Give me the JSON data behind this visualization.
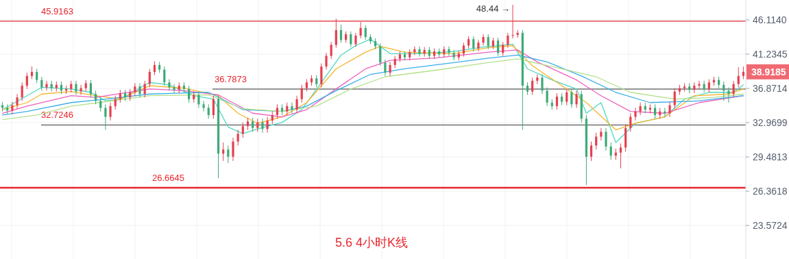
{
  "chart_data": {
    "type": "candlestick",
    "title": "5.6 4小时K线",
    "log": true,
    "grid": true,
    "tick_labels": "y",
    "ylim": [
      21.13,
      49.2
    ],
    "yticks": [
      23.5724,
      26.3618,
      29.4813,
      32.9699,
      36.8714,
      41.2345,
      {
        "value": 46.114,
        "label": "46.1140"
      }
    ],
    "categories": [
      null,
      null,
      null,
      null,
      null,
      null,
      null,
      null,
      null,
      null,
      null,
      null,
      null,
      null,
      null,
      null,
      null,
      null,
      null,
      null,
      null,
      null,
      null,
      null,
      null,
      null,
      null,
      null,
      null,
      null,
      null,
      null,
      null,
      null,
      null,
      null,
      null,
      null,
      null,
      null,
      null,
      null,
      null,
      null,
      null,
      null,
      null,
      null,
      null,
      null,
      null,
      null,
      null,
      null,
      null,
      null,
      null,
      null,
      null,
      null,
      null,
      null,
      null,
      null,
      null,
      null,
      null,
      null,
      null,
      null,
      null,
      null,
      null,
      null,
      null,
      null,
      null,
      null,
      null,
      null,
      null,
      null,
      null,
      null,
      null,
      null,
      null,
      null,
      null,
      null,
      null,
      null,
      null,
      null,
      null,
      null,
      null,
      null,
      null,
      null,
      null,
      null,
      null,
      null,
      null,
      null,
      null,
      null,
      null,
      null,
      null,
      null,
      null,
      null,
      null,
      null,
      null,
      null,
      null,
      null,
      null,
      null,
      null,
      null,
      null,
      null,
      null,
      null,
      null,
      null,
      null,
      null,
      null,
      null,
      null,
      null,
      null,
      null,
      null,
      null,
      null,
      null,
      null,
      null,
      null,
      null,
      null,
      null,
      null,
      null,
      null,
      null
    ],
    "ohlc": [
      [
        34.9,
        35.3,
        34.2,
        34.6
      ],
      [
        34.6,
        35.0,
        33.9,
        34.3
      ],
      [
        34.3,
        35.3,
        33.9,
        34.9
      ],
      [
        34.9,
        36.2,
        34.5,
        35.8
      ],
      [
        35.8,
        37.6,
        35.4,
        37.2
      ],
      [
        37.2,
        38.8,
        36.8,
        38.4
      ],
      [
        38.4,
        39.6,
        38.0,
        38.9
      ],
      [
        38.9,
        39.3,
        37.5,
        37.9
      ],
      [
        37.9,
        38.3,
        36.6,
        37.0
      ],
      [
        37.0,
        37.8,
        36.6,
        37.4
      ],
      [
        37.4,
        37.8,
        36.5,
        36.9
      ],
      [
        36.9,
        37.7,
        36.5,
        37.3
      ],
      [
        37.3,
        37.7,
        36.2,
        36.6
      ],
      [
        36.6,
        37.2,
        36.2,
        36.8
      ],
      [
        36.8,
        37.8,
        36.4,
        37.4
      ],
      [
        37.4,
        37.8,
        36.1,
        36.5
      ],
      [
        36.5,
        37.3,
        36.1,
        36.9
      ],
      [
        36.9,
        37.9,
        36.5,
        37.5
      ],
      [
        37.5,
        37.9,
        35.8,
        36.2
      ],
      [
        36.2,
        36.6,
        35.0,
        35.4
      ],
      [
        35.4,
        35.8,
        34.2,
        34.6
      ],
      [
        34.6,
        35.0,
        32.2,
        33.6
      ],
      [
        33.6,
        35.2,
        33.2,
        34.8
      ],
      [
        34.8,
        36.0,
        34.4,
        35.6
      ],
      [
        35.6,
        36.7,
        35.2,
        36.3
      ],
      [
        36.3,
        36.7,
        35.4,
        35.8
      ],
      [
        35.8,
        36.8,
        35.4,
        36.4
      ],
      [
        36.4,
        37.5,
        36.0,
        37.1
      ],
      [
        37.1,
        37.5,
        35.8,
        36.2
      ],
      [
        36.2,
        37.8,
        35.8,
        37.4
      ],
      [
        37.4,
        39.3,
        37.0,
        38.9
      ],
      [
        38.9,
        40.3,
        38.5,
        39.8
      ],
      [
        39.8,
        40.2,
        38.8,
        39.2
      ],
      [
        39.2,
        39.6,
        37.2,
        37.6
      ],
      [
        37.6,
        38.0,
        36.6,
        37.0
      ],
      [
        37.0,
        37.4,
        36.3,
        36.7
      ],
      [
        36.7,
        37.6,
        36.3,
        37.2
      ],
      [
        37.2,
        37.6,
        36.4,
        36.8
      ],
      [
        36.8,
        37.2,
        35.2,
        35.6
      ],
      [
        35.6,
        36.5,
        35.2,
        36.1
      ],
      [
        36.1,
        36.5,
        34.6,
        35.0
      ],
      [
        35.0,
        35.4,
        34.2,
        34.6
      ],
      [
        34.6,
        35.0,
        33.4,
        33.8
      ],
      [
        33.8,
        36.0,
        33.4,
        35.6
      ],
      [
        35.6,
        36.0,
        27.5,
        29.8
      ],
      [
        29.8,
        30.9,
        29.1,
        30.2
      ],
      [
        30.2,
        30.6,
        28.9,
        29.5
      ],
      [
        29.5,
        31.4,
        29.1,
        31.0
      ],
      [
        31.0,
        32.2,
        30.6,
        31.8
      ],
      [
        31.8,
        33.0,
        31.4,
        32.6
      ],
      [
        32.6,
        33.5,
        32.2,
        33.1
      ],
      [
        33.1,
        33.5,
        32.0,
        32.4
      ],
      [
        32.4,
        33.4,
        32.0,
        33.0
      ],
      [
        33.0,
        33.4,
        31.9,
        32.3
      ],
      [
        32.3,
        33.6,
        31.9,
        33.2
      ],
      [
        33.2,
        34.2,
        32.8,
        33.8
      ],
      [
        33.8,
        35.0,
        33.4,
        34.6
      ],
      [
        34.6,
        35.0,
        33.8,
        34.2
      ],
      [
        34.2,
        35.2,
        33.8,
        34.8
      ],
      [
        34.8,
        35.2,
        34.0,
        34.4
      ],
      [
        34.4,
        36.0,
        34.0,
        35.6
      ],
      [
        35.6,
        37.3,
        35.2,
        36.9
      ],
      [
        36.9,
        38.0,
        36.5,
        37.6
      ],
      [
        37.6,
        38.5,
        37.2,
        38.1
      ],
      [
        38.1,
        38.5,
        37.0,
        37.4
      ],
      [
        37.4,
        40.0,
        37.0,
        39.6
      ],
      [
        39.6,
        41.4,
        39.2,
        41.0
      ],
      [
        41.0,
        42.9,
        40.6,
        42.5
      ],
      [
        42.5,
        46.3,
        42.1,
        44.6
      ],
      [
        44.6,
        45.4,
        42.8,
        43.2
      ],
      [
        43.2,
        44.4,
        42.8,
        44.0
      ],
      [
        44.0,
        44.4,
        42.2,
        42.6
      ],
      [
        42.6,
        44.2,
        42.2,
        43.8
      ],
      [
        43.8,
        45.8,
        43.4,
        44.9
      ],
      [
        44.9,
        45.3,
        43.2,
        43.6
      ],
      [
        43.6,
        44.0,
        42.6,
        43.0
      ],
      [
        43.0,
        43.4,
        41.9,
        42.3
      ],
      [
        42.3,
        42.7,
        39.7,
        40.1
      ],
      [
        40.1,
        40.5,
        38.4,
        38.8
      ],
      [
        38.8,
        40.2,
        38.4,
        39.8
      ],
      [
        39.8,
        41.0,
        39.4,
        40.6
      ],
      [
        40.6,
        41.6,
        40.2,
        41.2
      ],
      [
        41.2,
        41.6,
        40.4,
        40.8
      ],
      [
        40.8,
        41.9,
        40.4,
        41.5
      ],
      [
        41.5,
        42.3,
        41.1,
        41.9
      ],
      [
        41.9,
        42.3,
        40.9,
        41.3
      ],
      [
        41.3,
        42.2,
        40.9,
        41.8
      ],
      [
        41.8,
        42.2,
        40.6,
        41.0
      ],
      [
        41.0,
        42.0,
        40.6,
        41.6
      ],
      [
        41.6,
        42.0,
        40.8,
        41.2
      ],
      [
        41.2,
        42.3,
        40.8,
        41.9
      ],
      [
        41.9,
        42.3,
        41.0,
        41.4
      ],
      [
        41.4,
        41.8,
        40.4,
        40.8
      ],
      [
        40.8,
        41.7,
        40.4,
        41.3
      ],
      [
        41.3,
        42.8,
        40.9,
        42.4
      ],
      [
        42.4,
        43.7,
        42.0,
        43.3
      ],
      [
        43.3,
        43.7,
        41.6,
        42.0
      ],
      [
        42.0,
        43.2,
        41.6,
        42.8
      ],
      [
        42.8,
        44.0,
        42.4,
        43.6
      ],
      [
        43.6,
        44.0,
        41.9,
        42.3
      ],
      [
        42.3,
        43.5,
        41.9,
        43.1
      ],
      [
        43.1,
        43.5,
        41.0,
        41.4
      ],
      [
        41.4,
        42.9,
        41.0,
        42.5
      ],
      [
        42.5,
        44.2,
        42.1,
        43.8
      ],
      [
        43.8,
        48.44,
        43.4,
        43.9
      ],
      [
        43.9,
        44.6,
        43.5,
        44.2
      ],
      [
        44.2,
        44.6,
        32.2,
        37.2
      ],
      [
        37.2,
        37.6,
        36.1,
        36.5
      ],
      [
        36.5,
        38.2,
        36.1,
        37.8
      ],
      [
        37.8,
        38.6,
        37.4,
        38.2
      ],
      [
        38.2,
        38.6,
        36.2,
        36.6
      ],
      [
        36.6,
        37.0,
        34.8,
        35.2
      ],
      [
        35.2,
        35.6,
        34.4,
        34.8
      ],
      [
        34.8,
        36.3,
        34.4,
        35.9
      ],
      [
        35.9,
        36.3,
        34.9,
        35.3
      ],
      [
        35.3,
        36.8,
        34.9,
        36.4
      ],
      [
        36.4,
        36.8,
        34.6,
        35.0
      ],
      [
        35.0,
        36.6,
        34.6,
        36.2
      ],
      [
        36.2,
        36.6,
        33.0,
        33.4
      ],
      [
        33.4,
        33.8,
        26.9,
        29.5
      ],
      [
        29.5,
        31.0,
        29.1,
        30.6
      ],
      [
        30.6,
        31.9,
        30.2,
        31.5
      ],
      [
        31.5,
        32.4,
        31.1,
        32.0
      ],
      [
        32.0,
        32.4,
        30.1,
        30.5
      ],
      [
        30.5,
        30.9,
        29.2,
        29.6
      ],
      [
        29.6,
        30.3,
        29.2,
        29.9
      ],
      [
        29.9,
        30.8,
        28.4,
        30.4
      ],
      [
        30.4,
        32.8,
        30.0,
        32.4
      ],
      [
        32.4,
        34.0,
        32.0,
        33.6
      ],
      [
        33.6,
        34.6,
        33.2,
        34.2
      ],
      [
        34.2,
        35.2,
        33.8,
        34.8
      ],
      [
        34.8,
        35.2,
        34.0,
        34.4
      ],
      [
        34.4,
        35.0,
        34.0,
        34.6
      ],
      [
        34.6,
        35.0,
        33.4,
        33.8
      ],
      [
        33.8,
        34.6,
        33.4,
        34.2
      ],
      [
        34.2,
        34.6,
        33.6,
        34.0
      ],
      [
        34.0,
        35.3,
        33.6,
        34.9
      ],
      [
        34.9,
        36.9,
        34.5,
        36.5
      ],
      [
        36.5,
        37.3,
        36.1,
        36.9
      ],
      [
        36.9,
        37.5,
        36.5,
        37.1
      ],
      [
        37.1,
        37.5,
        36.3,
        36.7
      ],
      [
        36.7,
        37.6,
        36.3,
        37.2
      ],
      [
        37.2,
        37.8,
        36.8,
        37.4
      ],
      [
        37.4,
        37.8,
        36.4,
        36.8
      ],
      [
        36.8,
        38.0,
        36.4,
        37.6
      ],
      [
        37.6,
        38.3,
        37.2,
        37.9
      ],
      [
        37.9,
        38.3,
        36.9,
        37.3
      ],
      [
        37.3,
        37.7,
        35.4,
        36.6
      ],
      [
        36.6,
        37.0,
        35.2,
        36.2
      ],
      [
        36.2,
        37.8,
        35.8,
        37.4
      ],
      [
        37.4,
        39.5,
        37.0,
        38.4
      ],
      [
        38.4,
        39.6,
        38.0,
        38.9185
      ]
    ],
    "series": [
      {
        "type": "line",
        "color": "#4fd8c0",
        "values": [
          34.4,
          null,
          null,
          null,
          null,
          36.0,
          null,
          null,
          37.0,
          null,
          null,
          null,
          null,
          null,
          36.8,
          null,
          null,
          null,
          36.4,
          null,
          null,
          35.4,
          null,
          null,
          35.6,
          null,
          null,
          null,
          null,
          null,
          37.6,
          null,
          null,
          null,
          37.3,
          null,
          null,
          null,
          null,
          36.0,
          null,
          null,
          null,
          35.6,
          null,
          null,
          32.5,
          null,
          null,
          31.8,
          null,
          null,
          32.3,
          null,
          null,
          null,
          null,
          33.0,
          null,
          null,
          null,
          34.4,
          null,
          null,
          null,
          37.6,
          null,
          null,
          null,
          41.1,
          null,
          null,
          42.4,
          null,
          null,
          43.3,
          null,
          null,
          null,
          41.3,
          null,
          null,
          null,
          null,
          null,
          41.3,
          null,
          null,
          null,
          null,
          null,
          null,
          41.6,
          null,
          null,
          null,
          null,
          null,
          42.2,
          null,
          null,
          null,
          null,
          null,
          42.6,
          null,
          null,
          39.3,
          null,
          null,
          null,
          null,
          37.9,
          null,
          null,
          null,
          null,
          36.8,
          null,
          34.0,
          null,
          null,
          35.2,
          null,
          null,
          30.9,
          null,
          null,
          null,
          32.9,
          null,
          null,
          null,
          null,
          null,
          33.6,
          null,
          null,
          null,
          35.6,
          null,
          null,
          null,
          null,
          36.4,
          null,
          null,
          null,
          null,
          36.4,
          null,
          37.3
        ]
      },
      {
        "type": "line",
        "color": "#f7b52c",
        "values": [
          34.4,
          null,
          null,
          null,
          null,
          35.2,
          null,
          null,
          36.2,
          null,
          null,
          null,
          null,
          null,
          36.5,
          null,
          null,
          null,
          null,
          36.0,
          null,
          null,
          null,
          null,
          35.6,
          null,
          null,
          null,
          null,
          null,
          37.2,
          null,
          null,
          null,
          null,
          null,
          null,
          36.9,
          null,
          null,
          null,
          null,
          null,
          null,
          36.0,
          null,
          null,
          null,
          34.0,
          null,
          null,
          null,
          32.9,
          null,
          null,
          null,
          null,
          33.6,
          null,
          null,
          null,
          null,
          35.2,
          null,
          null,
          null,
          null,
          null,
          39.3,
          null,
          null,
          null,
          null,
          null,
          41.5,
          null,
          null,
          42.3,
          null,
          null,
          null,
          null,
          41.5,
          null,
          null,
          null,
          null,
          null,
          null,
          null,
          null,
          null,
          41.3,
          null,
          null,
          null,
          null,
          null,
          null,
          42.1,
          null,
          null,
          null,
          null,
          42.4,
          null,
          null,
          null,
          39.7,
          null,
          null,
          null,
          null,
          null,
          37.2,
          null,
          null,
          null,
          null,
          35.2,
          null,
          null,
          null,
          null,
          null,
          32.2,
          null,
          null,
          null,
          32.9,
          null,
          null,
          null,
          null,
          null,
          33.6,
          null,
          null,
          null,
          null,
          null,
          36.0,
          null,
          null,
          null,
          null,
          null,
          null,
          36.2,
          null,
          null,
          36.8
        ]
      },
      {
        "type": "line",
        "color": "#ee5fbf",
        "values": [
          34.0,
          null,
          null,
          null,
          null,
          34.8,
          null,
          null,
          null,
          null,
          null,
          null,
          null,
          null,
          36.0,
          null,
          null,
          null,
          null,
          35.8,
          null,
          null,
          null,
          null,
          null,
          null,
          null,
          null,
          null,
          null,
          36.8,
          null,
          null,
          null,
          null,
          null,
          null,
          36.6,
          null,
          null,
          null,
          null,
          null,
          null,
          36.1,
          null,
          null,
          null,
          null,
          null,
          null,
          34.0,
          null,
          null,
          null,
          null,
          null,
          33.6,
          null,
          null,
          null,
          null,
          34.4,
          null,
          null,
          null,
          null,
          null,
          36.8,
          null,
          null,
          null,
          null,
          null,
          39.3,
          null,
          null,
          null,
          null,
          40.4,
          null,
          null,
          null,
          null,
          null,
          null,
          null,
          null,
          40.7,
          null,
          null,
          null,
          null,
          null,
          null,
          null,
          null,
          null,
          null,
          41.5,
          null,
          null,
          null,
          null,
          null,
          41.8,
          null,
          null,
          null,
          40.2,
          null,
          null,
          null,
          null,
          null,
          null,
          null,
          37.9,
          null,
          null,
          null,
          null,
          36.0,
          null,
          null,
          null,
          null,
          null,
          34.2,
          null,
          null,
          null,
          null,
          null,
          null,
          34.0,
          null,
          null,
          null,
          null,
          null,
          null,
          35.2,
          null,
          null,
          null,
          null,
          null,
          null,
          null,
          null,
          36.0
        ]
      },
      {
        "type": "line",
        "color": "#3aaee8",
        "values": [
          33.8,
          null,
          null,
          null,
          null,
          34.2,
          null,
          null,
          null,
          null,
          null,
          null,
          null,
          null,
          35.2,
          null,
          null,
          null,
          null,
          null,
          null,
          35.6,
          null,
          null,
          null,
          null,
          null,
          null,
          null,
          null,
          36.2,
          null,
          null,
          null,
          null,
          null,
          null,
          null,
          null,
          null,
          null,
          null,
          36.4,
          null,
          null,
          null,
          null,
          null,
          null,
          34.4,
          null,
          null,
          null,
          null,
          null,
          null,
          null,
          34.2,
          null,
          null,
          null,
          null,
          34.8,
          null,
          null,
          null,
          null,
          null,
          36.6,
          null,
          null,
          null,
          null,
          null,
          null,
          38.6,
          null,
          null,
          null,
          null,
          null,
          null,
          39.3,
          null,
          null,
          null,
          null,
          null,
          null,
          null,
          null,
          null,
          40.1,
          null,
          null,
          null,
          null,
          null,
          null,
          40.7,
          null,
          null,
          null,
          null,
          null,
          41.1,
          null,
          null,
          null,
          null,
          null,
          40.2,
          null,
          null,
          null,
          null,
          null,
          null,
          38.4,
          null,
          null,
          null,
          null,
          null,
          null,
          36.4,
          null,
          null,
          null,
          null,
          null,
          null,
          35.2,
          null,
          null,
          null,
          null,
          null,
          null,
          null,
          null,
          null,
          35.4,
          null,
          null,
          null,
          null,
          null,
          null,
          null,
          null,
          36.0
        ]
      },
      {
        "type": "line",
        "color": "#b5e08c",
        "values": [
          33.3,
          null,
          null,
          null,
          null,
          null,
          null,
          33.8,
          null,
          null,
          null,
          null,
          null,
          null,
          34.8,
          null,
          null,
          null,
          null,
          null,
          null,
          35.3,
          null,
          null,
          null,
          null,
          null,
          null,
          null,
          null,
          36.0,
          null,
          null,
          null,
          null,
          null,
          null,
          null,
          null,
          null,
          null,
          null,
          36.1,
          null,
          null,
          null,
          null,
          null,
          null,
          34.5,
          null,
          null,
          null,
          null,
          null,
          null,
          null,
          34.2,
          null,
          null,
          null,
          null,
          null,
          null,
          34.8,
          null,
          null,
          null,
          null,
          null,
          null,
          36.8,
          null,
          null,
          null,
          null,
          null,
          null,
          38.3,
          null,
          null,
          null,
          null,
          null,
          null,
          null,
          null,
          null,
          39.1,
          null,
          null,
          null,
          null,
          null,
          null,
          null,
          null,
          null,
          null,
          40.1,
          null,
          null,
          null,
          null,
          null,
          40.6,
          null,
          null,
          null,
          null,
          null,
          null,
          null,
          null,
          39.3,
          null,
          null,
          null,
          null,
          null,
          null,
          38.3,
          null,
          null,
          null,
          null,
          null,
          null,
          36.4,
          null,
          null,
          null,
          null,
          null,
          null,
          null,
          null,
          35.6,
          null,
          null,
          null,
          null,
          null,
          null,
          null,
          35.8,
          null,
          null,
          null,
          null,
          null,
          36.2
        ]
      }
    ],
    "ref_lines": [
      {
        "axis": "y",
        "value": 45.9163,
        "label": "45.9163",
        "color": "#e8262e"
      },
      {
        "axis": "y",
        "value": 36.7873,
        "label": "36.7873",
        "color": "#333333"
      },
      {
        "axis": "y",
        "value": 32.7246,
        "label": "32.7246",
        "color": "#333333"
      },
      {
        "axis": "y",
        "value": 26.6645,
        "label": "26.6645",
        "color": "#e8262e"
      }
    ],
    "annotations": [
      "48.44 →",
      "38.9185"
    ]
  }
}
